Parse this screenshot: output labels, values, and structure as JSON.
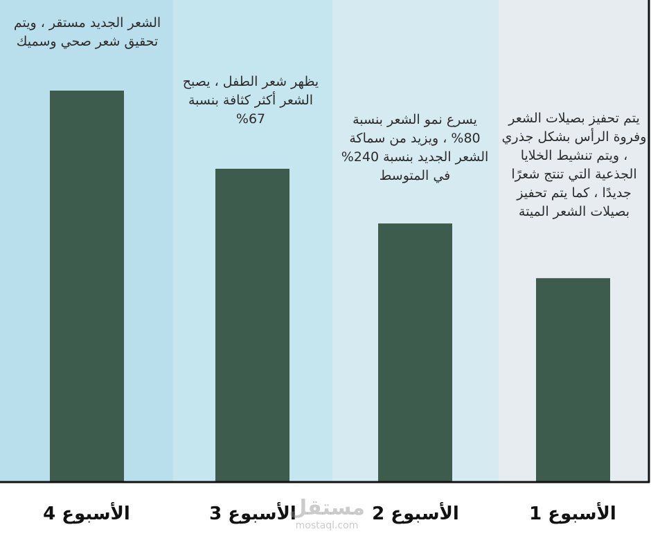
{
  "chart_data": {
    "type": "bar",
    "categories": [
      "الأسبوع 4",
      "الأسبوع 3",
      "الأسبوع 2",
      "الأسبوع 1"
    ],
    "values": [
      100,
      80,
      66,
      52
    ],
    "ylim": [
      0,
      100
    ],
    "grid": false,
    "title": "",
    "xlabel": "",
    "ylabel": "",
    "annotations": [
      "الشعر الجديد مستقر ، ويتم تحقيق شعر صحي وسميك",
      "يظهر شعر الطفل ، يصبح الشعر أكثر كثافة بنسبة 67%",
      "يسرع نمو الشعر بنسبة 80% ، ويزيد من سماكة الشعر الجديد بنسبة 240% في المتوسط",
      "يتم تحفيز بصيلات الشعر وفروة الرأس بشكل جذري ، ويتم تنشيط الخلايا الجذعية التي تنتج شعرًا جديدًا ، كما يتم تحفيز بصيلات الشعر الميتة"
    ],
    "column_colors": [
      "#b8dfeb",
      "#c6e6ef",
      "#d6eaf1",
      "#e6ecef"
    ],
    "bar_color": "#3d5c4e"
  },
  "watermark": {
    "text": "مستقل",
    "subtext": "mostaql.com"
  }
}
